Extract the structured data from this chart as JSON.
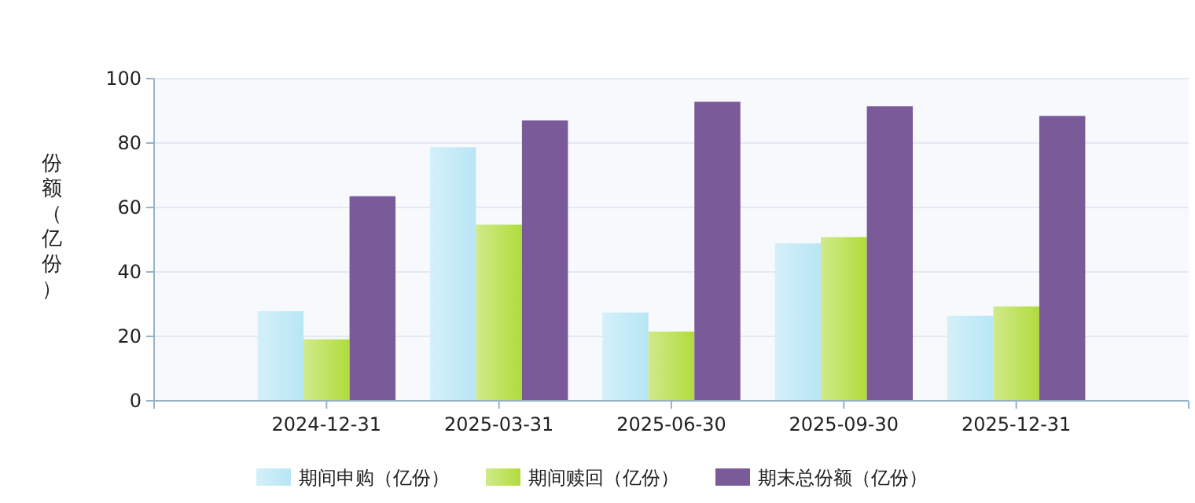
{
  "chart_data": {
    "type": "bar",
    "ylabel": "份额（亿份）",
    "categories": [
      "2024-12-31",
      "2025-03-31",
      "2025-06-30",
      "2025-09-30",
      "2025-12-31"
    ],
    "series": [
      {
        "name": "期间申购（亿份）",
        "color": "#b8e6f5",
        "values": [
          27.8,
          78.7,
          27.4,
          48.9,
          26.4
        ]
      },
      {
        "name": "期间赎回（亿份）",
        "color": "#b0dc3c",
        "values": [
          19.1,
          54.7,
          21.5,
          50.8,
          29.3
        ]
      },
      {
        "name": "期末总份额（亿份）",
        "color": "#7b5a9a",
        "values": [
          63.5,
          87.0,
          92.8,
          91.4,
          88.4
        ]
      }
    ],
    "ylim": [
      0,
      100
    ],
    "yticks": [
      0,
      20,
      40,
      60,
      80,
      100
    ],
    "grid": "y",
    "legend": "bottom"
  }
}
